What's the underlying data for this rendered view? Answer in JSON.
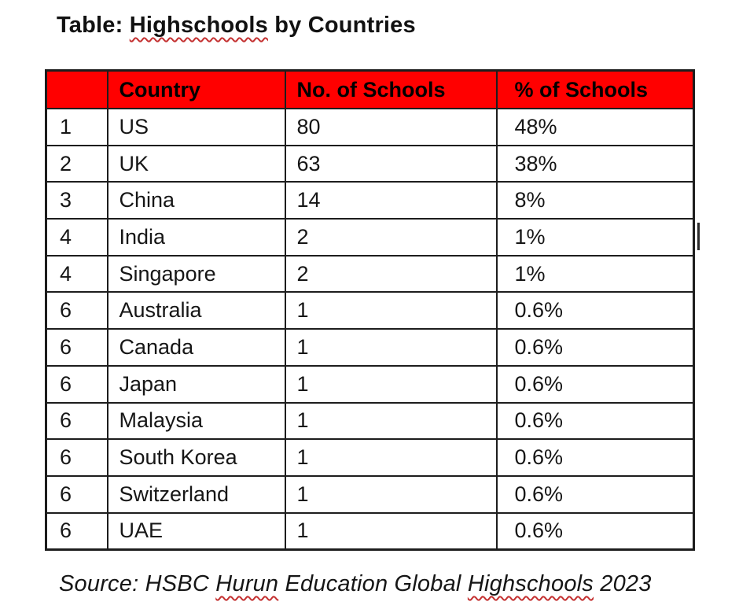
{
  "title": {
    "prefix": "Table: ",
    "flagged_word": "Highschools",
    "suffix": " by Countries"
  },
  "table": {
    "headers": {
      "rank": "",
      "country": "Country",
      "schools": "No. of Schools",
      "pct": "% of Schools"
    },
    "rows": [
      {
        "rank": "1",
        "country": "US",
        "schools": "80",
        "pct": "48%"
      },
      {
        "rank": "2",
        "country": "UK",
        "schools": "63",
        "pct": "38%"
      },
      {
        "rank": "3",
        "country": "China",
        "schools": "14",
        "pct": "8%"
      },
      {
        "rank": "4",
        "country": "India",
        "schools": "2",
        "pct": "1%"
      },
      {
        "rank": "4",
        "country": "Singapore",
        "schools": "2",
        "pct": "1%"
      },
      {
        "rank": "6",
        "country": "Australia",
        "schools": "1",
        "pct": "0.6%"
      },
      {
        "rank": "6",
        "country": "Canada",
        "schools": "1",
        "pct": "0.6%"
      },
      {
        "rank": "6",
        "country": "Japan",
        "schools": "1",
        "pct": "0.6%"
      },
      {
        "rank": "6",
        "country": "Malaysia",
        "schools": "1",
        "pct": "0.6%"
      },
      {
        "rank": "6",
        "country": "South Korea",
        "schools": "1",
        "pct": "0.6%"
      },
      {
        "rank": "6",
        "country": "Switzerland",
        "schools": "1",
        "pct": "0.6%"
      },
      {
        "rank": "6",
        "country": "UAE",
        "schools": "1",
        "pct": "0.6%"
      }
    ]
  },
  "source": {
    "segments": [
      {
        "text": "Source: HSBC ",
        "flagged": false
      },
      {
        "text": "Hurun",
        "flagged": true
      },
      {
        "text": " Education Global ",
        "flagged": false
      },
      {
        "text": "Highschools",
        "flagged": true
      },
      {
        "text": " 2023",
        "flagged": false
      }
    ]
  },
  "colors": {
    "header_bg": "#ff0000",
    "header_text": "#000000",
    "border": "#1d1d1d",
    "spellcheck_squiggle": "#c43131"
  }
}
